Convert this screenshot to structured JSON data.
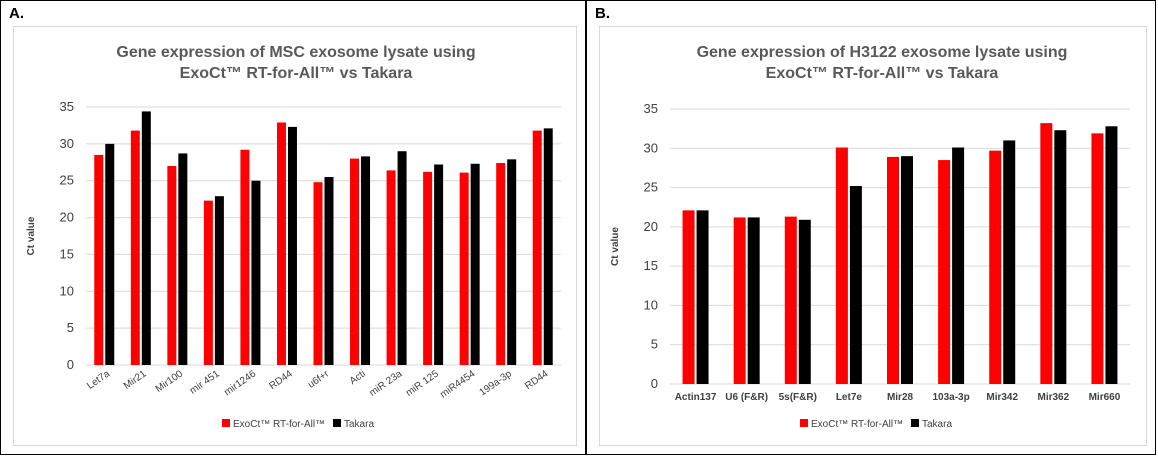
{
  "chart_data": [
    {
      "panel_label": "A.",
      "type": "bar",
      "title_lines": [
        "Gene expression of  MSC  exosome lysate using",
        "ExoCt™ RT-for-All™ vs Takara"
      ],
      "ylabel": "Ct value",
      "xlabel": "",
      "ylim": [
        0,
        35
      ],
      "yticks": [
        0,
        5,
        10,
        15,
        20,
        25,
        30,
        35
      ],
      "grid": true,
      "legend_position": "bottom",
      "categories": [
        "Let7a",
        "Mir21",
        "Mir100",
        "mir 451",
        "mir1246",
        "RD44",
        "u6f+r",
        "Acti",
        "miR 23a",
        "miR 125",
        "miR4454",
        "199a-3p",
        "RD44"
      ],
      "series": [
        {
          "name": "ExoCt™ RT-for-All™",
          "color": "#ff0000",
          "values": [
            28.5,
            31.8,
            27.0,
            22.3,
            29.2,
            32.9,
            24.8,
            28.0,
            26.4,
            26.2,
            26.1,
            27.4,
            31.8
          ]
        },
        {
          "name": "Takara",
          "color": "#000000",
          "values": [
            30.0,
            34.4,
            28.7,
            22.9,
            25.0,
            32.3,
            25.5,
            28.3,
            29.0,
            27.2,
            27.3,
            27.9,
            32.1
          ]
        }
      ]
    },
    {
      "panel_label": "B.",
      "type": "bar",
      "title_lines": [
        "Gene expression of  H3122 exosome lysate using",
        "ExoCt™ RT-for-All™ vs Takara"
      ],
      "ylabel": "Ct value",
      "xlabel": "",
      "ylim": [
        0,
        35
      ],
      "yticks": [
        0,
        5,
        10,
        15,
        20,
        25,
        30,
        35
      ],
      "grid": true,
      "legend_position": "bottom",
      "categories": [
        "Actin137",
        "U6 (F&R)",
        "5s(F&R)",
        "Let7e",
        "Mir28",
        "103a-3p",
        "Mir342",
        "Mir362",
        "Mir660"
      ],
      "series": [
        {
          "name": "ExoCt™ RT-for-All™",
          "color": "#ff0000",
          "values": [
            22.1,
            21.2,
            21.3,
            30.1,
            28.9,
            28.5,
            29.7,
            33.2,
            31.9
          ]
        },
        {
          "name": "Takara",
          "color": "#000000",
          "values": [
            22.1,
            21.2,
            20.9,
            25.2,
            29.0,
            30.1,
            31.0,
            32.3,
            32.8
          ]
        }
      ]
    }
  ],
  "colors": {
    "grid": "#d9d9d9",
    "axis_text": "#404040",
    "title": "#595959"
  }
}
